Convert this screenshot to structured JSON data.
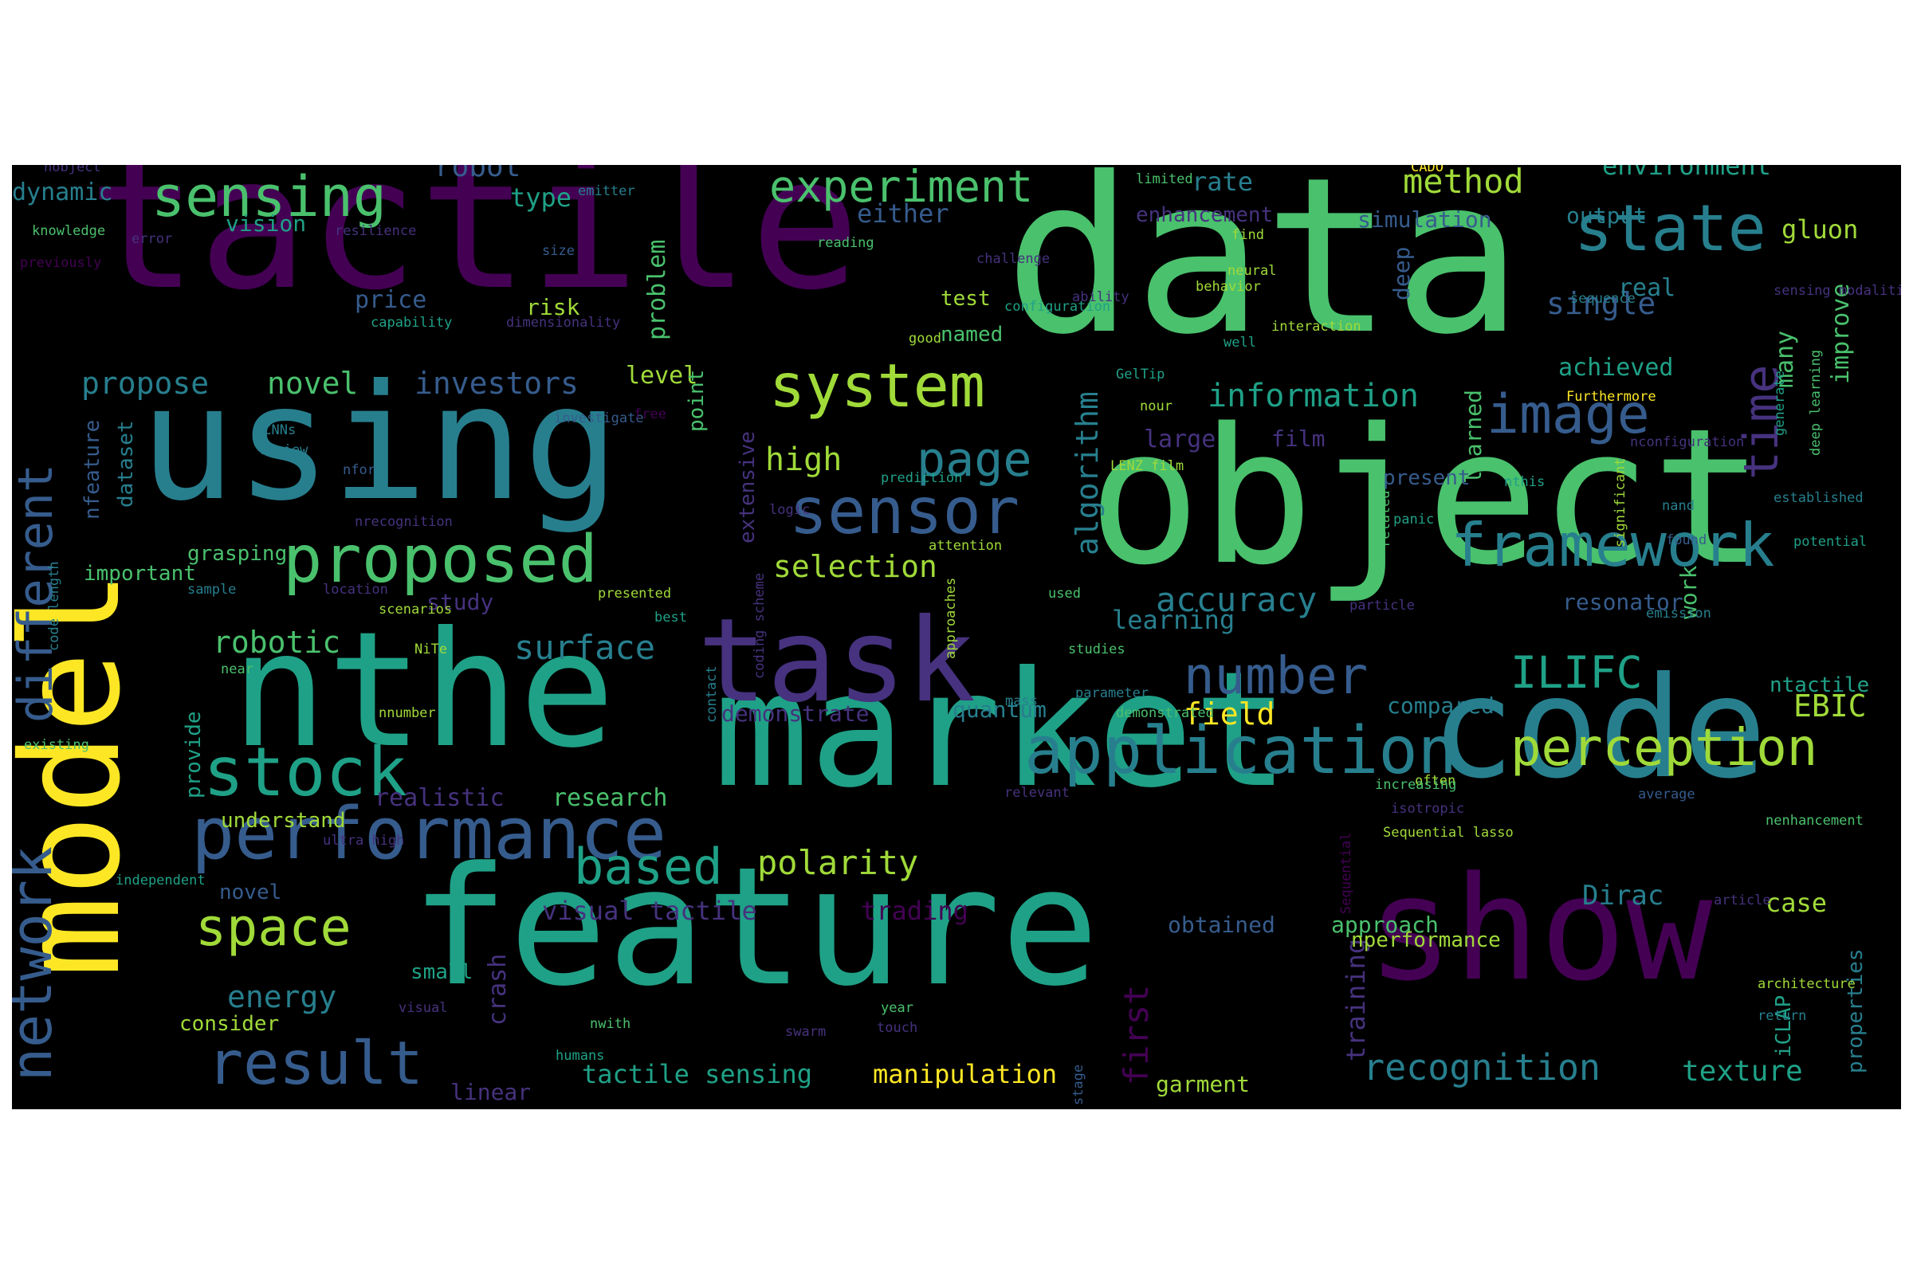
{
  "colors": {
    "background": "#000000",
    "palette": [
      "#440154",
      "#46327e",
      "#365c8d",
      "#277f8e",
      "#1fa187",
      "#4ac16d",
      "#a0da39",
      "#fde725"
    ]
  },
  "words": [
    {
      "text": "data",
      "c": "#4ac16d"
    },
    {
      "text": "object",
      "c": "#4ac16d"
    },
    {
      "text": "tactile",
      "c": "#440154"
    },
    {
      "text": "using",
      "c": "#277f8e"
    },
    {
      "text": "nthe",
      "c": "#1fa187"
    },
    {
      "text": "market",
      "c": "#1fa187"
    },
    {
      "text": "code",
      "c": "#277f8e"
    },
    {
      "text": "feature",
      "c": "#1fa187"
    },
    {
      "text": "show",
      "c": "#440154"
    },
    {
      "text": "model",
      "c": "#fde725"
    },
    {
      "text": "task",
      "c": "#46327e"
    },
    {
      "text": "performance",
      "c": "#365c8d"
    },
    {
      "text": "proposed",
      "c": "#4ac16d"
    },
    {
      "text": "sensing",
      "c": "#4ac16d"
    },
    {
      "text": "system",
      "c": "#a0da39"
    },
    {
      "text": "sensor",
      "c": "#365c8d"
    },
    {
      "text": "framework",
      "c": "#277f8e"
    },
    {
      "text": "application",
      "c": "#277f8e"
    },
    {
      "text": "perception",
      "c": "#a0da39"
    },
    {
      "text": "stock",
      "c": "#1fa187"
    },
    {
      "text": "state",
      "c": "#277f8e"
    },
    {
      "text": "image",
      "c": "#365c8d"
    },
    {
      "text": "experiment",
      "c": "#4ac16d"
    },
    {
      "text": "result",
      "c": "#365c8d"
    },
    {
      "text": "network",
      "c": "#365c8d"
    },
    {
      "text": "number",
      "c": "#365c8d"
    },
    {
      "text": "space",
      "c": "#a0da39"
    },
    {
      "text": "based",
      "c": "#1fa187"
    },
    {
      "text": "ILIFC",
      "c": "#1fa187"
    },
    {
      "text": "time",
      "c": "#46327e"
    },
    {
      "text": "page",
      "c": "#277f8e"
    },
    {
      "text": "different",
      "c": "#365c8d"
    },
    {
      "text": "polarity",
      "c": "#a0da39"
    },
    {
      "text": "recognition",
      "c": "#277f8e"
    },
    {
      "text": "method",
      "c": "#a0da39"
    },
    {
      "text": "accuracy",
      "c": "#277f8e"
    },
    {
      "text": "information",
      "c": "#1fa187"
    },
    {
      "text": "surface",
      "c": "#277f8e"
    },
    {
      "text": "robotic",
      "c": "#4ac16d"
    },
    {
      "text": "energy",
      "c": "#277f8e"
    },
    {
      "text": "first",
      "c": "#440154"
    },
    {
      "text": "selection",
      "c": "#a0da39"
    },
    {
      "text": "high",
      "c": "#a0da39"
    },
    {
      "text": "manipulation",
      "c": "#fde725"
    },
    {
      "text": "tactile sensing",
      "c": "#1fa187"
    },
    {
      "text": "texture",
      "c": "#1fa187"
    },
    {
      "text": "environment",
      "c": "#1fa187"
    },
    {
      "text": "propose",
      "c": "#277f8e"
    },
    {
      "text": "novel",
      "c": "#4ac16d"
    },
    {
      "text": "investors",
      "c": "#365c8d"
    },
    {
      "text": "single",
      "c": "#365c8d"
    },
    {
      "text": "algorithm",
      "c": "#277f8e"
    },
    {
      "text": "learning",
      "c": "#277f8e"
    },
    {
      "text": "field",
      "c": "#fde725"
    },
    {
      "text": "Dirac",
      "c": "#277f8e"
    },
    {
      "text": "EBIC",
      "c": "#a0da39"
    },
    {
      "text": "case",
      "c": "#a0da39"
    },
    {
      "text": "visual tactile",
      "c": "#46327e"
    },
    {
      "text": "trading",
      "c": "#440154"
    },
    {
      "text": "realistic",
      "c": "#46327e"
    },
    {
      "text": "research",
      "c": "#4ac16d"
    },
    {
      "text": "robot",
      "c": "#365c8d"
    },
    {
      "text": "type",
      "c": "#1fa187"
    },
    {
      "text": "either",
      "c": "#365c8d"
    },
    {
      "text": "rate",
      "c": "#277f8e"
    },
    {
      "text": "dynamic",
      "c": "#277f8e"
    },
    {
      "text": "vision",
      "c": "#1fa187"
    },
    {
      "text": "price",
      "c": "#365c8d"
    },
    {
      "text": "risk",
      "c": "#a0da39"
    },
    {
      "text": "problem",
      "c": "#4ac16d"
    },
    {
      "text": "level",
      "c": "#a0da39"
    },
    {
      "text": "large",
      "c": "#46327e"
    },
    {
      "text": "achieved",
      "c": "#1fa187"
    },
    {
      "text": "improve",
      "c": "#4ac16d"
    },
    {
      "text": "many",
      "c": "#4ac16d"
    },
    {
      "text": "gluon",
      "c": "#a0da39"
    },
    {
      "text": "real",
      "c": "#277f8e"
    },
    {
      "text": "output",
      "c": "#277f8e"
    },
    {
      "text": "simulation",
      "c": "#365c8d"
    },
    {
      "text": "enhancement",
      "c": "#46327e"
    },
    {
      "text": "test",
      "c": "#a0da39"
    },
    {
      "text": "named",
      "c": "#4ac16d"
    },
    {
      "text": "deep",
      "c": "#365c8d"
    },
    {
      "text": "film",
      "c": "#46327e"
    },
    {
      "text": "learned",
      "c": "#4ac16d"
    },
    {
      "text": "work",
      "c": "#4ac16d"
    },
    {
      "text": "resonator",
      "c": "#365c8d"
    },
    {
      "text": "ntactile",
      "c": "#1fa187"
    },
    {
      "text": "compared",
      "c": "#277f8e"
    },
    {
      "text": "demonstrate",
      "c": "#46327e"
    },
    {
      "text": "quantum",
      "c": "#277f8e"
    },
    {
      "text": "obtained",
      "c": "#365c8d"
    },
    {
      "text": "approach",
      "c": "#4ac16d"
    },
    {
      "text": "training",
      "c": "#46327e"
    },
    {
      "text": "garment",
      "c": "#a0da39"
    },
    {
      "text": "linear",
      "c": "#46327e"
    },
    {
      "text": "crash",
      "c": "#46327e"
    },
    {
      "text": "consider",
      "c": "#a0da39"
    },
    {
      "text": "small",
      "c": "#1fa187"
    },
    {
      "text": "novel",
      "c": "#365c8d"
    },
    {
      "text": "understand",
      "c": "#a0da39"
    },
    {
      "text": "study",
      "c": "#46327e"
    },
    {
      "text": "grasping",
      "c": "#4ac16d"
    },
    {
      "text": "important",
      "c": "#4ac16d"
    },
    {
      "text": "nfeature",
      "c": "#365c8d"
    },
    {
      "text": "dataset",
      "c": "#277f8e"
    },
    {
      "text": "extensive",
      "c": "#46327e"
    },
    {
      "text": "point",
      "c": "#4ac16d"
    },
    {
      "text": "present",
      "c": "#365c8d"
    },
    {
      "text": "nperformance",
      "c": "#a0da39"
    },
    {
      "text": "properties",
      "c": "#277f8e"
    },
    {
      "text": "iCLAP",
      "c": "#1fa187"
    },
    {
      "text": "provide",
      "c": "#1fa187"
    },
    {
      "text": "nobject",
      "c": "#46327e"
    },
    {
      "text": "knowledge",
      "c": "#4ac16d"
    },
    {
      "text": "error",
      "c": "#46327e"
    },
    {
      "text": "resilience",
      "c": "#46327e"
    },
    {
      "text": "emitter",
      "c": "#277f8e"
    },
    {
      "text": "size",
      "c": "#365c8d"
    },
    {
      "text": "previously",
      "c": "#440154"
    },
    {
      "text": "capability",
      "c": "#1fa187"
    },
    {
      "text": "dimensionality",
      "c": "#46327e"
    },
    {
      "text": "DCNNs",
      "c": "#277f8e"
    },
    {
      "text": "investigate",
      "c": "#365c8d"
    },
    {
      "text": "free",
      "c": "#440154"
    },
    {
      "text": "review",
      "c": "#277f8e"
    },
    {
      "text": "nfor",
      "c": "#365c8d"
    },
    {
      "text": "nrecognition",
      "c": "#46327e"
    },
    {
      "text": "prediction",
      "c": "#1fa187"
    },
    {
      "text": "logic",
      "c": "#46327e"
    },
    {
      "text": "attention",
      "c": "#a0da39"
    },
    {
      "text": "sample",
      "c": "#277f8e"
    },
    {
      "text": "location",
      "c": "#46327e"
    },
    {
      "text": "scenarios",
      "c": "#a0da39"
    },
    {
      "text": "presented",
      "c": "#a0da39"
    },
    {
      "text": "best",
      "c": "#1fa187"
    },
    {
      "text": "NiTe",
      "c": "#a0da39"
    },
    {
      "text": "code length",
      "c": "#277f8e"
    },
    {
      "text": "existing",
      "c": "#4ac16d"
    },
    {
      "text": "nnumber",
      "c": "#a0da39"
    },
    {
      "text": "near",
      "c": "#4ac16d"
    },
    {
      "text": "ultra high",
      "c": "#46327e"
    },
    {
      "text": "independent",
      "c": "#1fa187"
    },
    {
      "text": "visual",
      "c": "#46327e"
    },
    {
      "text": "nwith",
      "c": "#4ac16d"
    },
    {
      "text": "humans",
      "c": "#1fa187"
    },
    {
      "text": "swarm",
      "c": "#46327e"
    },
    {
      "text": "year",
      "c": "#4ac16d"
    },
    {
      "text": "touch",
      "c": "#46327e"
    },
    {
      "text": "contact",
      "c": "#277f8e"
    },
    {
      "text": "approaches",
      "c": "#a0da39"
    },
    {
      "text": "coding scheme",
      "c": "#46327e"
    },
    {
      "text": "mass",
      "c": "#277f8e"
    },
    {
      "text": "relevant",
      "c": "#46327e"
    },
    {
      "text": "parameter",
      "c": "#277f8e"
    },
    {
      "text": "demonstrated",
      "c": "#4ac16d"
    },
    {
      "text": "studies",
      "c": "#4ac16d"
    },
    {
      "text": "used",
      "c": "#4ac16d"
    },
    {
      "text": "related",
      "c": "#4ac16d"
    },
    {
      "text": "particle",
      "c": "#46327e"
    },
    {
      "text": "panic",
      "c": "#1fa187"
    },
    {
      "text": "stage",
      "c": "#365c8d"
    },
    {
      "text": "Sequential",
      "c": "#440154"
    },
    {
      "text": "Sequential lasso",
      "c": "#a0da39"
    },
    {
      "text": "isotropic",
      "c": "#46327e"
    },
    {
      "text": "often",
      "c": "#a0da39"
    },
    {
      "text": "increasing",
      "c": "#4ac16d"
    },
    {
      "text": "average",
      "c": "#365c8d"
    },
    {
      "text": "nenhancement",
      "c": "#4ac16d"
    },
    {
      "text": "article",
      "c": "#46327e"
    },
    {
      "text": "architecture",
      "c": "#a0da39"
    },
    {
      "text": "return",
      "c": "#277f8e"
    },
    {
      "text": "emission",
      "c": "#277f8e"
    },
    {
      "text": "significant",
      "c": "#a0da39"
    },
    {
      "text": "found",
      "c": "#365c8d"
    },
    {
      "text": "nand",
      "c": "#277f8e"
    },
    {
      "text": "established",
      "c": "#277f8e"
    },
    {
      "text": "potential",
      "c": "#1fa187"
    },
    {
      "text": "nthis",
      "c": "#1fa187"
    },
    {
      "text": "LENZ film",
      "c": "#a0da39"
    },
    {
      "text": "Furthermore",
      "c": "#fde725"
    },
    {
      "text": "nconfiguration",
      "c": "#46327e"
    },
    {
      "text": "generate",
      "c": "#1fa187"
    },
    {
      "text": "deep learning",
      "c": "#4ac16d"
    },
    {
      "text": "sensing modalities",
      "c": "#46327e"
    },
    {
      "text": "sequence",
      "c": "#277f8e"
    },
    {
      "text": "behavior",
      "c": "#a0da39"
    },
    {
      "text": "interaction",
      "c": "#a0da39"
    },
    {
      "text": "well",
      "c": "#1fa187"
    },
    {
      "text": "CADO",
      "c": "#fde725"
    },
    {
      "text": "limited",
      "c": "#4ac16d"
    },
    {
      "text": "find",
      "c": "#a0da39"
    },
    {
      "text": "neural",
      "c": "#a0da39"
    },
    {
      "text": "ability",
      "c": "#46327e"
    },
    {
      "text": "good",
      "c": "#a0da39"
    },
    {
      "text": "configuration",
      "c": "#1fa187"
    },
    {
      "text": "nour",
      "c": "#a0da39"
    },
    {
      "text": "GelTip",
      "c": "#1fa187"
    },
    {
      "text": "challenge",
      "c": "#46327e"
    },
    {
      "text": "reading",
      "c": "#4ac16d"
    }
  ]
}
